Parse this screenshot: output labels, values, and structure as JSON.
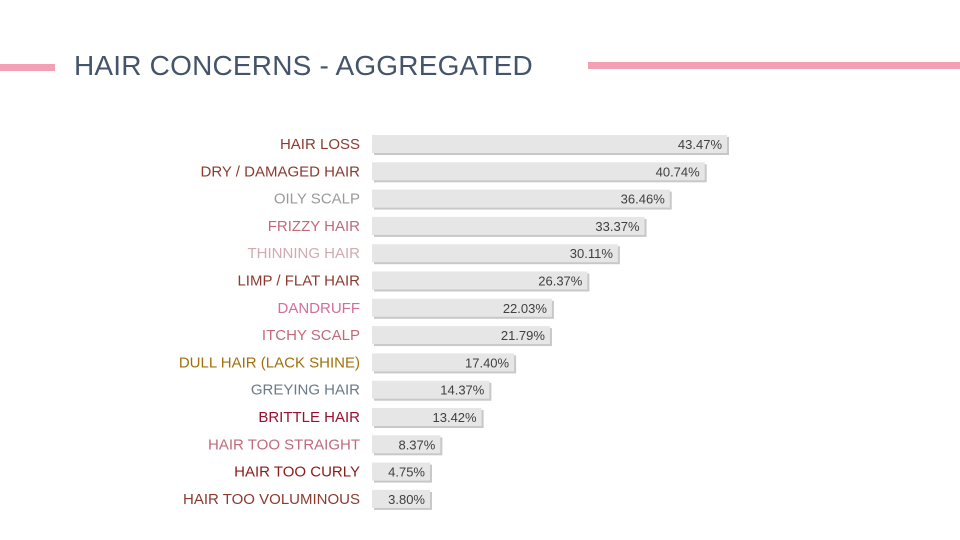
{
  "title": "HAIR CONCERNS - AGGREGATED",
  "colors": {
    "accent": "#f4a0b4",
    "title": "#44546a",
    "bar": "#e6e6e6",
    "bar_shadow": "#c8c8c8"
  },
  "chart_data": {
    "type": "bar",
    "orientation": "horizontal",
    "categories": [
      "HAIR LOSS",
      "DRY / DAMAGED HAIR",
      "OILY SCALP",
      "FRIZZY HAIR",
      "THINNING HAIR",
      "LIMP / FLAT HAIR",
      "DANDRUFF",
      "ITCHY SCALP",
      "DULL HAIR (LACK SHINE)",
      "GREYING HAIR",
      "BRITTLE HAIR",
      "HAIR TOO STRAIGHT",
      "HAIR TOO CURLY",
      "HAIR TOO VOLUMINOUS"
    ],
    "values": [
      43.47,
      40.74,
      36.46,
      33.37,
      30.11,
      26.37,
      22.03,
      21.79,
      17.4,
      14.37,
      13.42,
      8.37,
      4.75,
      3.8
    ],
    "value_labels": [
      "43.47%",
      "40.74%",
      "36.46%",
      "33.37%",
      "30.11%",
      "26.37%",
      "22.03%",
      "21.79%",
      "17.40%",
      "14.37%",
      "13.42%",
      "8.37%",
      "4.75%",
      "3.80%"
    ],
    "label_colors": [
      "#8b3a2f",
      "#8b3a2f",
      "#9a9a9a",
      "#c06a7a",
      "#d0aab0",
      "#8b3a2f",
      "#d0709a",
      "#c06a7a",
      "#a0700a",
      "#6a7a8a",
      "#9a1030",
      "#c06a7a",
      "#8b1a1a",
      "#8b3a2f"
    ],
    "xlim": [
      0,
      43.47
    ],
    "grid": false,
    "legend": "none"
  }
}
